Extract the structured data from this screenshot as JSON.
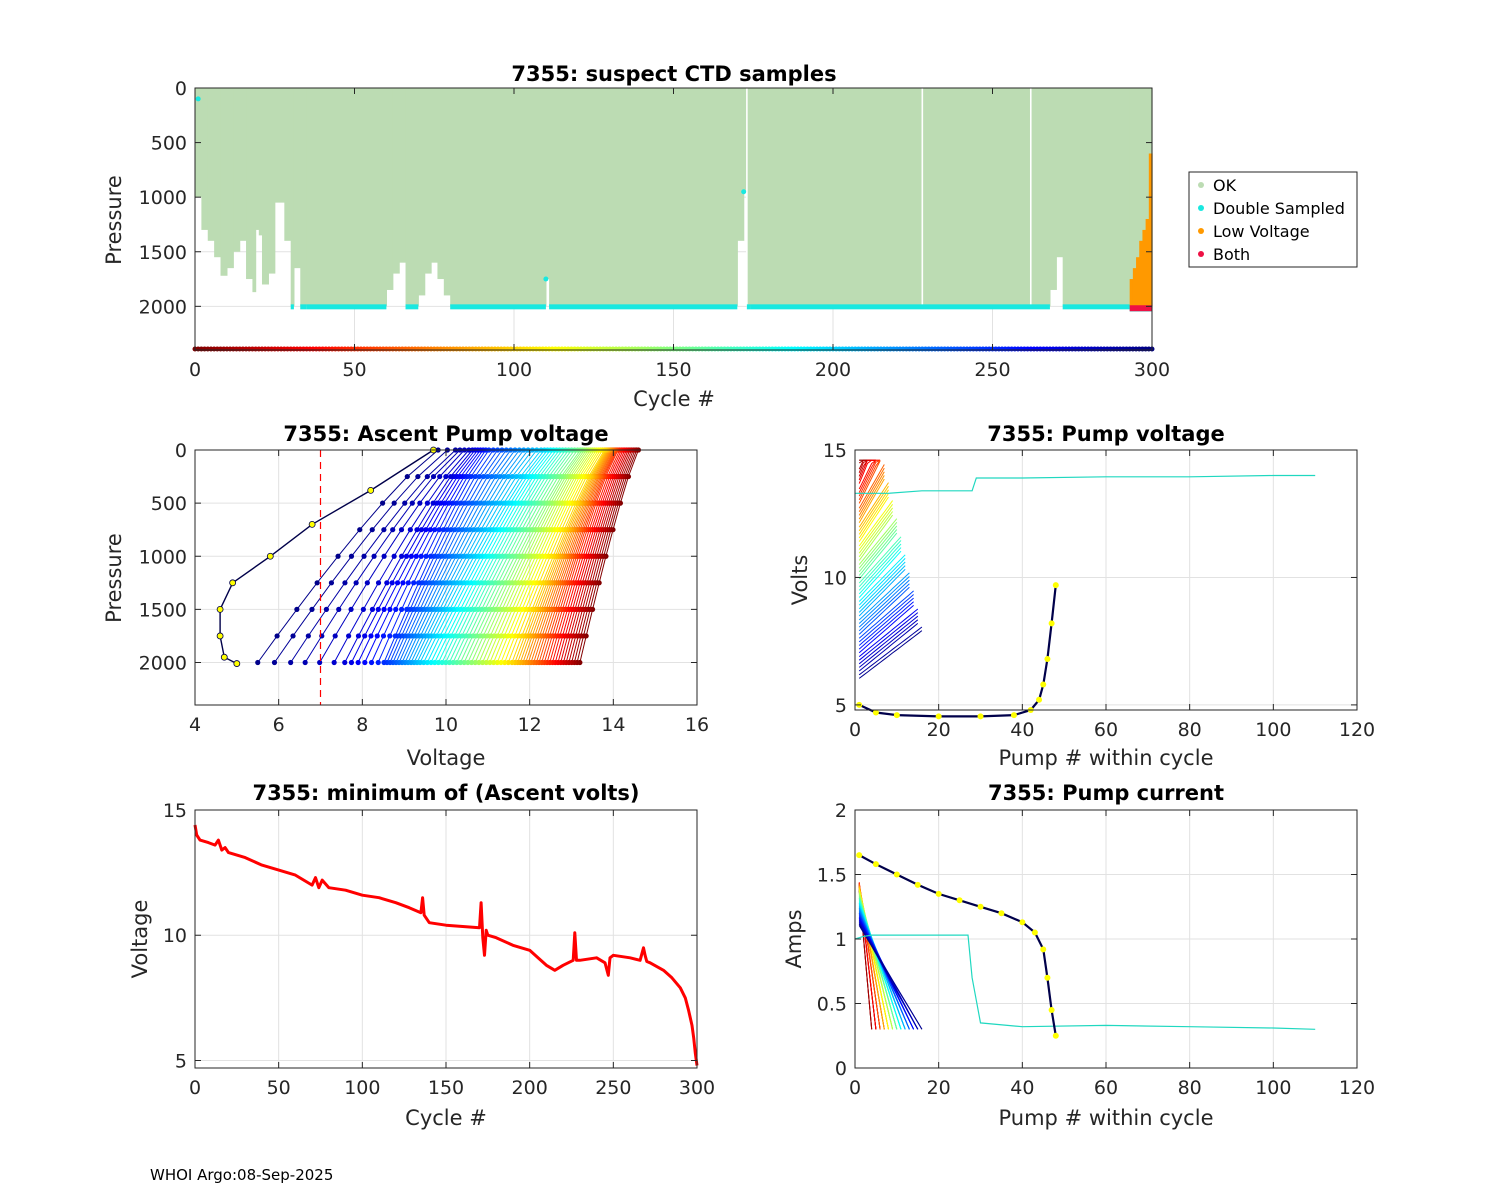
{
  "footer": "WHOI Argo:08-Sep-2025",
  "colors": {
    "ok": "#bcdcb3",
    "double_sampled": "#19e8e0",
    "low_voltage": "#ff9900",
    "both": "#ee1144",
    "voltage_line": "#ff0000",
    "threshold": "#ff0000",
    "grid": "#e2e2e2",
    "axis": "#262626"
  },
  "chart_data": [
    {
      "id": "ctd",
      "type": "area",
      "title": "7355: suspect CTD samples",
      "xlabel": "Cycle #",
      "ylabel": "Pressure",
      "xlim": [
        0,
        300
      ],
      "ylim": [
        2400,
        0
      ],
      "xticks": [
        0,
        50,
        100,
        150,
        200,
        250,
        300
      ],
      "yticks": [
        0,
        500,
        1000,
        1500,
        2000
      ],
      "legend": {
        "position": "outside-right",
        "entries": [
          {
            "label": "OK",
            "color": "#bcdcb3"
          },
          {
            "label": "Double Sampled",
            "color": "#19e8e0"
          },
          {
            "label": "Low Voltage",
            "color": "#ff9900"
          },
          {
            "label": "Both",
            "color": "#ee1144"
          }
        ]
      },
      "profile_depth_segments": [
        {
          "from": 0,
          "to": 2,
          "depth": 1000
        },
        {
          "from": 2,
          "to": 4,
          "depth": 1300
        },
        {
          "from": 4,
          "to": 6,
          "depth": 1400
        },
        {
          "from": 6,
          "to": 8,
          "depth": 1550
        },
        {
          "from": 8,
          "to": 10,
          "depth": 1720
        },
        {
          "from": 10,
          "to": 12,
          "depth": 1650
        },
        {
          "from": 12,
          "to": 14,
          "depth": 1500
        },
        {
          "from": 14,
          "to": 16,
          "depth": 1400
        },
        {
          "from": 16,
          "to": 18,
          "depth": 1750
        },
        {
          "from": 18,
          "to": 19,
          "depth": 1870
        },
        {
          "from": 19,
          "to": 20,
          "depth": 1300
        },
        {
          "from": 20,
          "to": 21,
          "depth": 1350
        },
        {
          "from": 21,
          "to": 23,
          "depth": 1800
        },
        {
          "from": 23,
          "to": 25,
          "depth": 1700
        },
        {
          "from": 25,
          "to": 28,
          "depth": 1050
        },
        {
          "from": 28,
          "to": 30,
          "depth": 1400
        },
        {
          "from": 30,
          "to": 31,
          "depth": 2000
        },
        {
          "from": 31,
          "to": 33,
          "depth": 1650
        },
        {
          "from": 33,
          "to": 35,
          "depth": 2000
        },
        {
          "from": 35,
          "to": 60,
          "depth": 2000
        },
        {
          "from": 60,
          "to": 62,
          "depth": 1850
        },
        {
          "from": 62,
          "to": 64,
          "depth": 1700
        },
        {
          "from": 64,
          "to": 66,
          "depth": 1600
        },
        {
          "from": 66,
          "to": 70,
          "depth": 2000
        },
        {
          "from": 70,
          "to": 72,
          "depth": 1900
        },
        {
          "from": 72,
          "to": 74,
          "depth": 1700
        },
        {
          "from": 74,
          "to": 76,
          "depth": 1600
        },
        {
          "from": 76,
          "to": 78,
          "depth": 1750
        },
        {
          "from": 78,
          "to": 80,
          "depth": 1900
        },
        {
          "from": 80,
          "to": 110,
          "depth": 2000
        },
        {
          "from": 110,
          "to": 111,
          "depth": 1750
        },
        {
          "from": 111,
          "to": 170,
          "depth": 2000
        },
        {
          "from": 170,
          "to": 172,
          "depth": 1400
        },
        {
          "from": 172,
          "to": 173,
          "depth": 950
        },
        {
          "from": 173,
          "to": 174,
          "depth": 2000
        },
        {
          "from": 174,
          "to": 268,
          "depth": 2000
        },
        {
          "from": 268,
          "to": 270,
          "depth": 1850
        },
        {
          "from": 270,
          "to": 272,
          "depth": 1550
        },
        {
          "from": 272,
          "to": 293,
          "depth": 2000
        },
        {
          "from": 293,
          "to": 300,
          "depth": 2020
        }
      ],
      "data_gaps": [
        173,
        228,
        262
      ],
      "double_sampled_depth": 2000,
      "low_voltage_segments": [
        {
          "from": 293,
          "to": 294,
          "top": 1750
        },
        {
          "from": 294,
          "to": 295,
          "top": 1650
        },
        {
          "from": 295,
          "to": 296,
          "top": 1550
        },
        {
          "from": 296,
          "to": 297,
          "top": 1400
        },
        {
          "from": 297,
          "to": 298,
          "top": 1300
        },
        {
          "from": 298,
          "to": 299,
          "top": 1200
        },
        {
          "from": 299,
          "to": 300,
          "top": 600
        }
      ],
      "colorbar_depth": 2400
    },
    {
      "id": "ascent",
      "type": "line",
      "title": "7355: Ascent Pump voltage",
      "xlabel": "Voltage",
      "ylabel": "Pressure",
      "xlim": [
        4,
        16
      ],
      "ylim": [
        2400,
        0
      ],
      "xticks": [
        4,
        6,
        8,
        10,
        12,
        14,
        16
      ],
      "yticks": [
        0,
        500,
        1000,
        1500,
        2000
      ],
      "threshold_voltage": 7,
      "profiles_by_cycle": [
        {
          "cycle": 1,
          "v_surface": 14.6,
          "v_bottom": 13.2
        },
        {
          "cycle": 50,
          "v_surface": 14.1,
          "v_bottom": 12.4
        },
        {
          "cycle": 100,
          "v_surface": 13.8,
          "v_bottom": 11.6
        },
        {
          "cycle": 150,
          "v_surface": 13.2,
          "v_bottom": 10.5
        },
        {
          "cycle": 200,
          "v_surface": 12.3,
          "v_bottom": 9.4
        },
        {
          "cycle": 250,
          "v_surface": 11.0,
          "v_bottom": 8.5
        },
        {
          "cycle": 275,
          "v_surface": 10.6,
          "v_bottom": 7.5
        },
        {
          "cycle": 290,
          "v_surface": 10.2,
          "v_bottom": 6.2
        },
        {
          "cycle": 299,
          "v_surface": 9.7,
          "v_bottom": 5.3
        }
      ],
      "last_profile": {
        "voltage": [
          9.7,
          8.2,
          6.8,
          5.8,
          4.9,
          4.6,
          4.6,
          4.7,
          5.0
        ],
        "pressure": [
          0,
          380,
          700,
          1000,
          1250,
          1500,
          1750,
          1950,
          2010
        ]
      }
    },
    {
      "id": "pumpv",
      "type": "line",
      "title": "7355: Pump voltage",
      "xlabel": "Pump # within cycle",
      "ylabel": "Volts",
      "xlim": [
        0,
        120
      ],
      "ylim": [
        4.8,
        15
      ],
      "xticks": [
        0,
        20,
        40,
        60,
        80,
        100,
        120
      ],
      "yticks": [
        5,
        10,
        15
      ],
      "long_series": {
        "pump": [
          0,
          8,
          16,
          24,
          28,
          29,
          40,
          60,
          80,
          100,
          110
        ],
        "volts": [
          13.3,
          13.3,
          13.4,
          13.4,
          13.4,
          13.9,
          13.9,
          13.95,
          13.95,
          14.0,
          14.0
        ]
      },
      "last_cycle_series": {
        "pump": [
          1,
          5,
          10,
          20,
          30,
          38,
          42,
          44,
          45,
          46,
          47,
          48
        ],
        "volts": [
          5.0,
          4.7,
          4.6,
          4.55,
          4.55,
          4.6,
          4.8,
          5.2,
          5.8,
          6.8,
          8.2,
          9.7
        ]
      }
    },
    {
      "id": "minv",
      "type": "line",
      "title": "7355: minimum of (Ascent volts)",
      "xlabel": "Cycle #",
      "ylabel": "Voltage",
      "xlim": [
        0,
        300
      ],
      "ylim": [
        4.7,
        15
      ],
      "xticks": [
        0,
        50,
        100,
        150,
        200,
        250,
        300
      ],
      "yticks": [
        5,
        10,
        15
      ],
      "x": [
        0,
        1,
        3,
        8,
        12,
        14,
        16,
        18,
        20,
        30,
        40,
        50,
        60,
        70,
        72,
        74,
        76,
        80,
        90,
        100,
        110,
        120,
        128,
        135,
        136,
        137,
        140,
        150,
        160,
        170,
        171,
        172,
        173,
        174,
        175,
        180,
        190,
        200,
        205,
        210,
        215,
        220,
        226,
        227,
        228,
        230,
        240,
        245,
        247,
        248,
        250,
        260,
        266,
        268,
        269,
        270,
        272,
        280,
        285,
        290,
        293,
        295,
        297,
        298,
        299,
        300
      ],
      "y": [
        14.4,
        14.0,
        13.8,
        13.7,
        13.6,
        13.8,
        13.4,
        13.5,
        13.3,
        13.1,
        12.8,
        12.6,
        12.4,
        12.0,
        12.3,
        11.9,
        12.2,
        11.9,
        11.8,
        11.6,
        11.5,
        11.3,
        11.1,
        10.9,
        11.5,
        10.8,
        10.5,
        10.4,
        10.35,
        10.3,
        11.3,
        9.9,
        9.2,
        10.2,
        10.0,
        9.9,
        9.6,
        9.4,
        9.1,
        8.8,
        8.6,
        8.8,
        9.0,
        10.1,
        9.0,
        9.0,
        9.1,
        8.9,
        8.4,
        9.1,
        9.2,
        9.1,
        9.0,
        9.5,
        9.2,
        8.95,
        8.9,
        8.6,
        8.3,
        7.9,
        7.5,
        7.0,
        6.4,
        5.9,
        5.3,
        4.8
      ]
    },
    {
      "id": "pumpi",
      "type": "line",
      "title": "7355: Pump current",
      "xlabel": "Pump # within cycle",
      "ylabel": "Amps",
      "xlim": [
        0,
        120
      ],
      "ylim": [
        0,
        2
      ],
      "xticks": [
        0,
        20,
        40,
        60,
        80,
        100,
        120
      ],
      "yticks": [
        0,
        0.5,
        1,
        1.5,
        2
      ],
      "ytick_labels": [
        "0",
        "0.5",
        "1",
        "1.5",
        "2"
      ],
      "long_series": {
        "pump": [
          0,
          2,
          4,
          6,
          10,
          20,
          27,
          28,
          30,
          40,
          60,
          80,
          100,
          110
        ],
        "amps": [
          1.0,
          1.02,
          1.03,
          1.03,
          1.03,
          1.03,
          1.03,
          0.7,
          0.35,
          0.32,
          0.33,
          0.32,
          0.31,
          0.3
        ]
      },
      "last_cycle_series": {
        "pump": [
          1,
          5,
          10,
          15,
          20,
          25,
          30,
          35,
          40,
          43,
          45,
          46,
          47,
          48
        ],
        "amps": [
          1.65,
          1.58,
          1.5,
          1.42,
          1.35,
          1.3,
          1.25,
          1.2,
          1.13,
          1.05,
          0.92,
          0.7,
          0.45,
          0.25
        ]
      }
    }
  ]
}
